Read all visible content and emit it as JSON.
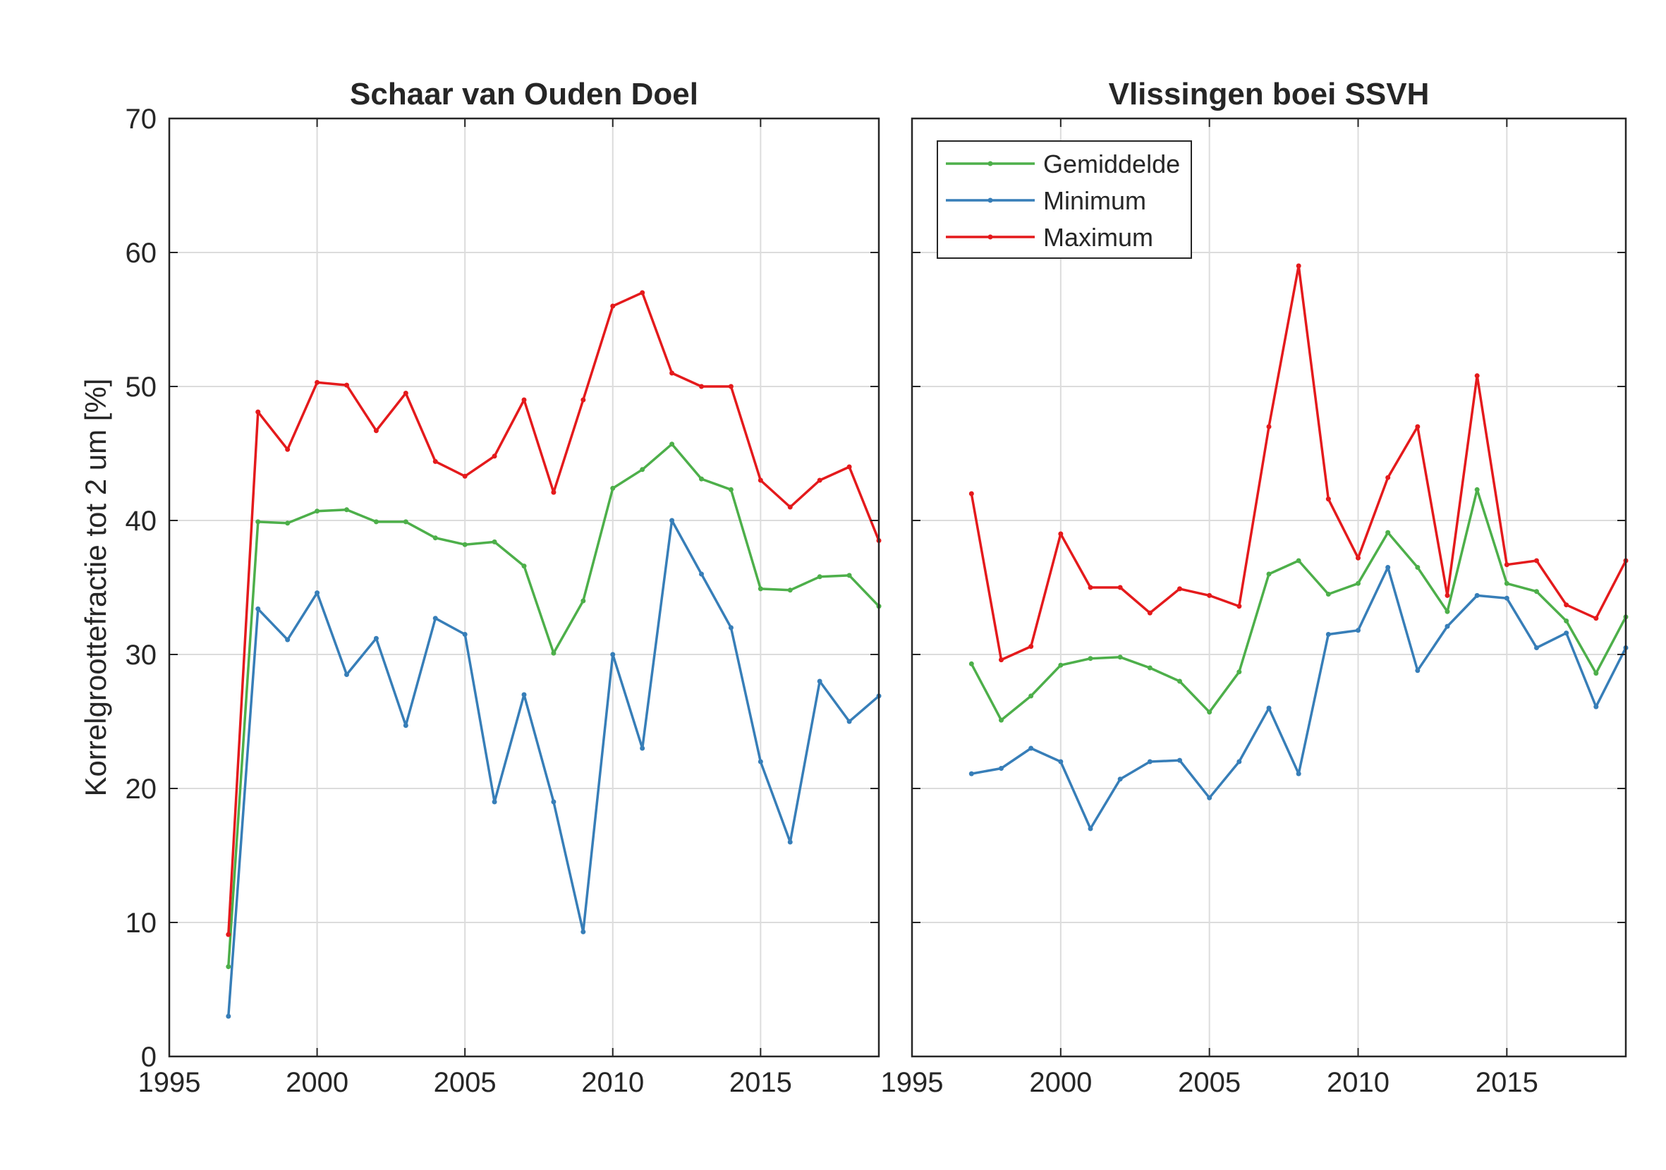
{
  "chart_data": [
    {
      "type": "line",
      "title": "Schaar van Ouden Doel",
      "xlabel": "",
      "ylabel": "Korrelgroottefractie tot 2 um [%]",
      "xlim": [
        1995,
        2019
      ],
      "ylim": [
        0,
        70
      ],
      "xticks": [
        1995,
        2000,
        2005,
        2010,
        2015
      ],
      "yticks": [
        0,
        10,
        20,
        30,
        40,
        50,
        60,
        70
      ],
      "grid": true,
      "legend": "none",
      "x": [
        1997,
        1998,
        1999,
        2000,
        2001,
        2002,
        2003,
        2004,
        2005,
        2006,
        2007,
        2008,
        2009,
        2010,
        2011,
        2012,
        2013,
        2014,
        2015,
        2016,
        2017,
        2018,
        2019
      ],
      "series": [
        {
          "name": "Gemiddelde",
          "color": "#4daf4a",
          "values": [
            6.7,
            39.9,
            39.8,
            40.7,
            40.8,
            39.9,
            39.9,
            38.7,
            38.2,
            38.4,
            36.6,
            30.1,
            34.0,
            42.4,
            43.8,
            45.7,
            43.1,
            42.3,
            34.9,
            34.8,
            35.8,
            35.9,
            33.6
          ]
        },
        {
          "name": "Minimum",
          "color": "#377eb8",
          "values": [
            3.0,
            33.4,
            31.1,
            34.6,
            28.5,
            31.2,
            24.7,
            32.7,
            31.5,
            19.0,
            27.0,
            19.0,
            9.3,
            30.0,
            23.0,
            40.0,
            36.0,
            32.0,
            22.0,
            16.0,
            28.0,
            25.0,
            26.9
          ]
        },
        {
          "name": "Maximum",
          "color": "#e41a1c",
          "values": [
            9.1,
            48.1,
            45.3,
            50.3,
            50.1,
            46.7,
            49.5,
            44.4,
            43.3,
            44.8,
            49.0,
            42.1,
            49.0,
            56.0,
            57.0,
            51.0,
            50.0,
            50.0,
            43.0,
            41.0,
            43.0,
            44.0,
            38.5
          ]
        }
      ]
    },
    {
      "type": "line",
      "title": "Vlissingen boei SSVH",
      "xlabel": "",
      "ylabel": "",
      "xlim": [
        1995,
        2019
      ],
      "ylim": [
        0,
        70
      ],
      "xticks": [
        1995,
        2000,
        2005,
        2010,
        2015
      ],
      "yticks": [
        0,
        10,
        20,
        30,
        40,
        50,
        60,
        70
      ],
      "grid": true,
      "legend": "top-left",
      "x": [
        1997,
        1998,
        1999,
        2000,
        2001,
        2002,
        2003,
        2004,
        2005,
        2006,
        2007,
        2008,
        2009,
        2010,
        2011,
        2012,
        2013,
        2014,
        2015,
        2016,
        2017,
        2018,
        2019
      ],
      "series": [
        {
          "name": "Gemiddelde",
          "color": "#4daf4a",
          "values": [
            29.3,
            25.1,
            26.9,
            29.2,
            29.7,
            29.8,
            29.0,
            28.0,
            25.7,
            28.7,
            36.0,
            37.0,
            34.5,
            35.3,
            39.1,
            36.5,
            33.2,
            42.3,
            35.3,
            34.7,
            32.5,
            28.6,
            32.8
          ]
        },
        {
          "name": "Minimum",
          "color": "#377eb8",
          "values": [
            21.1,
            21.5,
            23.0,
            22.0,
            17.0,
            20.7,
            22.0,
            22.1,
            19.3,
            22.0,
            26.0,
            21.1,
            31.5,
            31.8,
            36.5,
            28.8,
            32.1,
            34.4,
            34.2,
            30.5,
            31.6,
            26.1,
            30.5
          ]
        },
        {
          "name": "Maximum",
          "color": "#e41a1c",
          "values": [
            42.0,
            29.6,
            30.6,
            39.0,
            35.0,
            35.0,
            33.1,
            34.9,
            34.4,
            33.6,
            47.0,
            59.0,
            41.6,
            37.2,
            43.2,
            47.0,
            34.4,
            50.8,
            36.7,
            37.0,
            33.7,
            32.7,
            37.0
          ]
        }
      ]
    }
  ]
}
